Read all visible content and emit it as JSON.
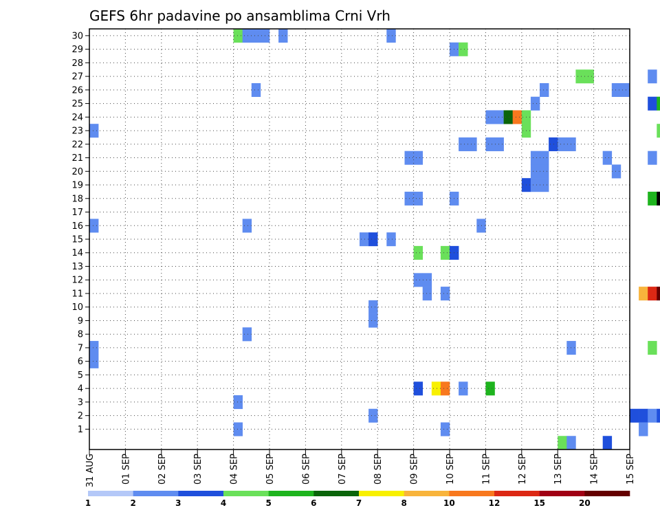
{
  "chart_data": {
    "type": "heatmap",
    "title": "GEFS 6hr padavine po ansamblima Crni Vrh",
    "xlabel": "",
    "ylabel": "",
    "x_tick_labels": [
      "31 AUG",
      "01 SEP",
      "02 SEP",
      "03 SEP",
      "04 SEP",
      "05 SEP",
      "06 SEP",
      "07 SEP",
      "08 SEP",
      "09 SEP",
      "10 SEP",
      "11 SEP",
      "12 SEP",
      "13 SEP",
      "14 SEP",
      "15 SEP"
    ],
    "y_tick_labels": [
      "1",
      "2",
      "3",
      "4",
      "5",
      "6",
      "7",
      "8",
      "9",
      "10",
      "11",
      "12",
      "13",
      "14",
      "15",
      "16",
      "17",
      "18",
      "19",
      "20",
      "21",
      "22",
      "23",
      "24",
      "25",
      "26",
      "27",
      "28",
      "29",
      "30"
    ],
    "x_steps_per_day": 4,
    "ylim": [
      0,
      30
    ],
    "grid": true,
    "colorbar": {
      "labels": [
        "1",
        "2",
        "3",
        "4",
        "5",
        "6",
        "7",
        "8",
        "10",
        "12",
        "15",
        "20"
      ],
      "colors": [
        "#b4c8f8",
        "#5f8cf0",
        "#1f4fdc",
        "#6ae05a",
        "#1eb41e",
        "#0a640a",
        "#f8f000",
        "#f8b43c",
        "#f8781e",
        "#dc2814",
        "#a00014",
        "#640000"
      ]
    },
    "cells": [
      [
        16,
        30,
        3
      ],
      [
        17,
        30,
        1
      ],
      [
        18,
        30,
        1
      ],
      [
        19,
        30,
        1
      ],
      [
        21,
        30,
        1
      ],
      [
        33,
        30,
        1
      ],
      [
        40,
        29,
        1
      ],
      [
        41,
        29,
        3
      ],
      [
        54,
        27,
        3
      ],
      [
        55,
        27,
        3
      ],
      [
        62,
        27,
        1
      ],
      [
        18,
        26,
        1
      ],
      [
        50,
        26,
        1
      ],
      [
        58,
        26,
        1
      ],
      [
        59,
        26,
        1
      ],
      [
        49,
        25,
        1
      ],
      [
        62,
        25,
        2
      ],
      [
        63,
        25,
        4
      ],
      [
        44,
        24,
        1
      ],
      [
        45,
        24,
        1
      ],
      [
        46,
        24,
        5
      ],
      [
        47,
        24,
        8
      ],
      [
        48,
        24,
        3
      ],
      [
        0,
        23,
        1
      ],
      [
        48,
        23,
        3
      ],
      [
        63,
        23,
        3
      ],
      [
        65,
        23,
        8
      ],
      [
        66,
        23,
        5
      ],
      [
        41,
        22,
        1
      ],
      [
        42,
        22,
        1
      ],
      [
        44,
        22,
        1
      ],
      [
        45,
        22,
        1
      ],
      [
        51,
        22,
        2
      ],
      [
        52,
        22,
        1
      ],
      [
        53,
        22,
        1
      ],
      [
        35,
        21,
        1
      ],
      [
        36,
        21,
        1
      ],
      [
        49,
        21,
        1
      ],
      [
        50,
        21,
        1
      ],
      [
        57,
        21,
        1
      ],
      [
        62,
        21,
        1
      ],
      [
        64,
        21,
        1
      ],
      [
        65,
        21,
        11
      ],
      [
        66,
        21,
        4
      ],
      [
        49,
        20,
        1
      ],
      [
        50,
        20,
        1
      ],
      [
        58,
        20,
        1
      ],
      [
        64,
        20,
        1
      ],
      [
        48,
        19,
        2
      ],
      [
        49,
        19,
        1
      ],
      [
        50,
        19,
        1
      ],
      [
        35,
        18,
        1
      ],
      [
        36,
        18,
        1
      ],
      [
        40,
        18,
        1
      ],
      [
        62,
        18,
        4
      ],
      [
        63,
        18,
        12
      ],
      [
        64,
        18,
        11
      ],
      [
        65,
        18,
        8
      ],
      [
        0,
        16,
        1
      ],
      [
        17,
        16,
        1
      ],
      [
        43,
        16,
        1
      ],
      [
        30,
        15,
        1
      ],
      [
        31,
        15,
        2
      ],
      [
        33,
        15,
        1
      ],
      [
        36,
        14,
        3
      ],
      [
        39,
        14,
        3
      ],
      [
        40,
        14,
        2
      ],
      [
        65,
        13,
        3
      ],
      [
        66,
        13,
        4
      ],
      [
        36,
        12,
        1
      ],
      [
        37,
        12,
        1
      ],
      [
        37,
        11,
        1
      ],
      [
        39,
        11,
        1
      ],
      [
        31,
        10,
        1
      ],
      [
        61,
        11,
        7
      ],
      [
        62,
        11,
        9
      ],
      [
        63,
        11,
        11
      ],
      [
        64,
        11,
        10
      ],
      [
        65,
        11,
        2
      ],
      [
        31,
        9,
        1
      ],
      [
        17,
        8,
        1
      ],
      [
        0,
        7,
        1
      ],
      [
        53,
        7,
        1
      ],
      [
        62,
        7,
        3
      ],
      [
        0,
        6,
        1
      ],
      [
        36,
        4,
        2
      ],
      [
        38,
        4,
        6
      ],
      [
        39,
        4,
        8
      ],
      [
        41,
        4,
        1
      ],
      [
        44,
        4,
        4
      ],
      [
        16,
        3,
        1
      ],
      [
        31,
        2,
        1
      ],
      [
        60,
        2,
        2
      ],
      [
        61,
        2,
        2
      ],
      [
        62,
        2,
        1
      ],
      [
        63,
        2,
        2
      ],
      [
        64,
        2,
        4
      ],
      [
        65,
        2,
        5
      ],
      [
        66,
        2,
        2
      ],
      [
        16,
        1,
        1
      ],
      [
        39,
        1,
        1
      ],
      [
        61,
        1,
        1
      ],
      [
        52,
        0,
        3
      ],
      [
        53,
        0,
        1
      ],
      [
        57,
        0,
        2
      ]
    ]
  }
}
